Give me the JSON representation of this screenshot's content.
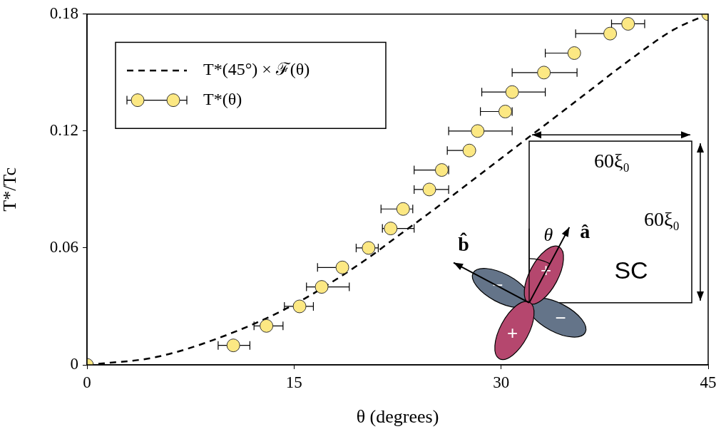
{
  "chart_data": {
    "type": "scatter",
    "xlabel": "θ (degrees)",
    "ylabel": "T*/Tc",
    "xlim": [
      0,
      45
    ],
    "xticks": [
      0,
      15,
      30,
      45
    ],
    "ylim": [
      0,
      0.18
    ],
    "yticks": [
      0,
      0.06,
      0.12,
      0.18
    ],
    "grid": false,
    "legend": "upper left",
    "series": [
      {
        "name": "T*(45°) × ℱ(θ)",
        "type": "line",
        "line_style": "dashed",
        "color": "#000000",
        "x": [
          0,
          5,
          10,
          15,
          20,
          22.5,
          25,
          30,
          35,
          40,
          42.5,
          45
        ],
        "values": [
          0,
          0.004,
          0.015,
          0.031,
          0.053,
          0.066,
          0.079,
          0.106,
          0.133,
          0.16,
          0.172,
          0.18
        ]
      },
      {
        "name": "T*(θ)",
        "type": "scatter",
        "marker": "circle",
        "color": "#fce883",
        "x": [
          0,
          10.6,
          13.0,
          15.4,
          17.0,
          18.5,
          20.4,
          22.0,
          22.9,
          24.8,
          25.7,
          27.7,
          28.3,
          30.3,
          30.8,
          33.1,
          35.3,
          37.9,
          39.2,
          45
        ],
        "values": [
          0,
          0.01,
          0.02,
          0.03,
          0.04,
          0.05,
          0.06,
          0.07,
          0.08,
          0.09,
          0.1,
          0.11,
          0.12,
          0.13,
          0.14,
          0.15,
          0.16,
          0.17,
          0.175,
          0.18
        ],
        "xerr_minus": [
          0,
          1.1,
          0.9,
          1.1,
          1.1,
          1.8,
          0.9,
          0.6,
          1.6,
          1.1,
          2.0,
          1.6,
          2.1,
          1.8,
          2.2,
          2.3,
          2.1,
          2.5,
          1.2,
          0
        ],
        "xerr_plus": [
          0,
          1.2,
          1.2,
          1.0,
          2.0,
          0.3,
          0.7,
          1.7,
          0.7,
          1.4,
          0.5,
          0.3,
          2.5,
          0.5,
          2.4,
          2.4,
          0.1,
          0.2,
          1.2,
          0
        ]
      }
    ],
    "annotations": {
      "width_label": "60ξ₀",
      "height_label": "60ξ₀",
      "angle_label": "θ",
      "a_label": "â",
      "b_label": "b̂",
      "region_label": "SC",
      "lobe_signs": [
        "+",
        "−",
        "+",
        "−"
      ]
    }
  }
}
